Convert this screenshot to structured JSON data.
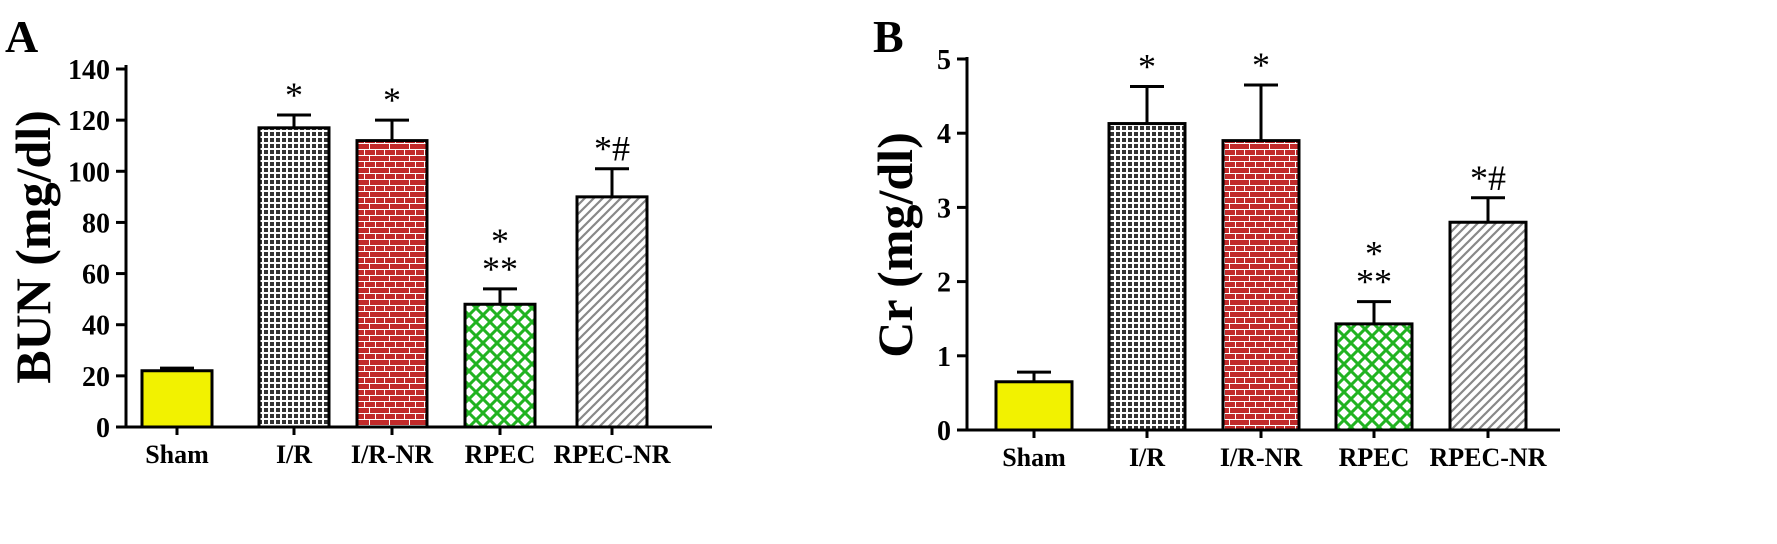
{
  "chart_data": [
    {
      "type": "bar",
      "panel": "A",
      "ylabel": "BUN (mg/dl)",
      "xlabel": "",
      "ylim": [
        0,
        140
      ],
      "yticks": [
        0,
        20,
        40,
        60,
        80,
        100,
        120,
        140
      ],
      "categories": [
        "Sham",
        "I/R",
        "I/R-NR",
        "RPEC",
        "RPEC-NR"
      ],
      "values": [
        22,
        117,
        112,
        48,
        90
      ],
      "errors": [
        1,
        5,
        8,
        6,
        11
      ],
      "annotations": [
        "",
        "*",
        "*",
        "*\n**",
        "*#"
      ],
      "grid": false
    },
    {
      "type": "bar",
      "panel": "B",
      "ylabel": "Cr (mg/dl)",
      "xlabel": "",
      "ylim": [
        0,
        5
      ],
      "yticks": [
        0,
        1,
        2,
        3,
        4,
        5
      ],
      "categories": [
        "Sham",
        "I/R",
        "I/R-NR",
        "RPEC",
        "RPEC-NR"
      ],
      "values": [
        0.65,
        4.13,
        3.9,
        1.43,
        2.8
      ],
      "errors": [
        0.13,
        0.5,
        0.75,
        0.3,
        0.33
      ],
      "annotations": [
        "",
        "*",
        "*",
        "*\n**",
        "*#"
      ],
      "grid": false
    }
  ],
  "series_colors": [
    "#f2f200",
    "#333333",
    "#c12a2a",
    "#21b321",
    "#888888"
  ],
  "series_patterns": [
    "solid",
    "dots",
    "bricks",
    "crosshatch",
    "diagonal"
  ]
}
